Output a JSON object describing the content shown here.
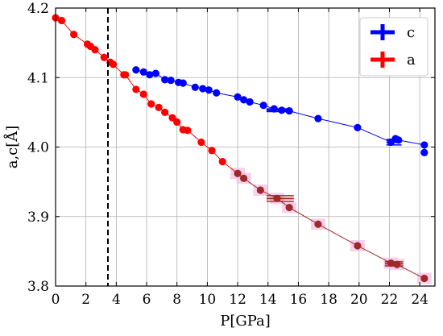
{
  "chart_data": {
    "type": "scatter",
    "xlabel": "P[GPa]",
    "ylabel": "a,c[Å]",
    "xlim": [
      0,
      25
    ],
    "ylim": [
      3.8,
      4.2
    ],
    "xticks": [
      0,
      2,
      4,
      6,
      8,
      10,
      12,
      14,
      16,
      18,
      20,
      22,
      24
    ],
    "yticks": [
      3.8,
      3.9,
      4.0,
      4.1,
      4.2
    ],
    "xtick_labels": [
      "0",
      "2",
      "4",
      "6",
      "8",
      "10",
      "12",
      "14",
      "16",
      "18",
      "20",
      "22",
      "24"
    ],
    "ytick_labels": [
      "3.8",
      "3.9",
      "4.0",
      "4.1",
      "4.2"
    ],
    "grid": true,
    "legend_position": "top-right",
    "vline": {
      "x": 3.45,
      "style": "dashed",
      "color": "#000000"
    },
    "series": [
      {
        "name": "c",
        "color": "#0000ff",
        "points": [
          [
            5.3,
            4.111
          ],
          [
            5.8,
            4.108
          ],
          [
            6.2,
            4.104
          ],
          [
            6.6,
            4.106
          ],
          [
            7.2,
            4.097
          ],
          [
            7.6,
            4.096
          ],
          [
            8.1,
            4.093
          ],
          [
            8.4,
            4.092
          ],
          [
            9.2,
            4.086
          ],
          [
            9.7,
            4.084
          ],
          [
            10.1,
            4.082
          ],
          [
            10.6,
            4.078
          ],
          [
            12.0,
            4.072
          ],
          [
            12.4,
            4.068
          ],
          [
            12.8,
            4.065
          ],
          [
            13.7,
            4.06
          ],
          [
            14.4,
            4.055
          ],
          [
            14.9,
            4.053
          ],
          [
            15.4,
            4.052
          ],
          [
            17.3,
            4.041
          ],
          [
            19.9,
            4.028
          ],
          [
            22.1,
            4.007
          ],
          [
            22.4,
            4.012
          ],
          [
            22.6,
            4.01
          ],
          [
            24.3,
            4.003
          ],
          [
            24.3,
            3.992
          ]
        ]
      },
      {
        "name": "a",
        "color": "#ff0000",
        "points": [
          [
            0.0,
            4.186
          ],
          [
            0.4,
            4.182
          ],
          [
            1.2,
            4.162
          ],
          [
            2.1,
            4.148
          ],
          [
            2.3,
            4.145
          ],
          [
            2.6,
            4.14
          ],
          [
            3.2,
            4.129
          ],
          [
            3.6,
            4.122
          ],
          [
            3.8,
            4.119
          ],
          [
            4.5,
            4.104
          ],
          [
            4.6,
            4.104
          ],
          [
            5.3,
            4.083
          ],
          [
            5.8,
            4.076
          ],
          [
            6.3,
            4.062
          ],
          [
            6.8,
            4.057
          ],
          [
            7.2,
            4.05
          ],
          [
            7.7,
            4.042
          ],
          [
            8.0,
            4.036
          ],
          [
            8.4,
            4.025
          ],
          [
            8.7,
            4.024
          ],
          [
            9.6,
            4.007
          ],
          [
            10.3,
            3.995
          ],
          [
            11.0,
            3.979
          ],
          [
            12.0,
            3.962
          ],
          [
            12.4,
            3.955
          ],
          [
            13.5,
            3.938
          ],
          [
            14.6,
            3.926
          ],
          [
            15.4,
            3.913
          ],
          [
            17.3,
            3.889
          ],
          [
            19.9,
            3.858
          ],
          [
            22.1,
            3.833
          ],
          [
            22.5,
            3.831
          ],
          [
            24.3,
            3.811
          ]
        ]
      }
    ],
    "darker_segment": {
      "series": "a",
      "x_from": 12.0,
      "color": "#a0282a"
    },
    "error_bars": [
      {
        "series": "c",
        "x": 14.7,
        "y": 4.053,
        "xerr": 0.8,
        "yerr": 0.002
      },
      {
        "series": "c",
        "x": 22.3,
        "y": 4.007,
        "xerr": 0.5,
        "yerr": 0.004
      },
      {
        "series": "a",
        "x": 14.8,
        "y": 3.926,
        "xerr": 0.9,
        "yerr": 0.004
      },
      {
        "series": "a",
        "x": 22.3,
        "y": 3.832,
        "xerr": 0.6,
        "yerr": 0.003
      }
    ]
  }
}
